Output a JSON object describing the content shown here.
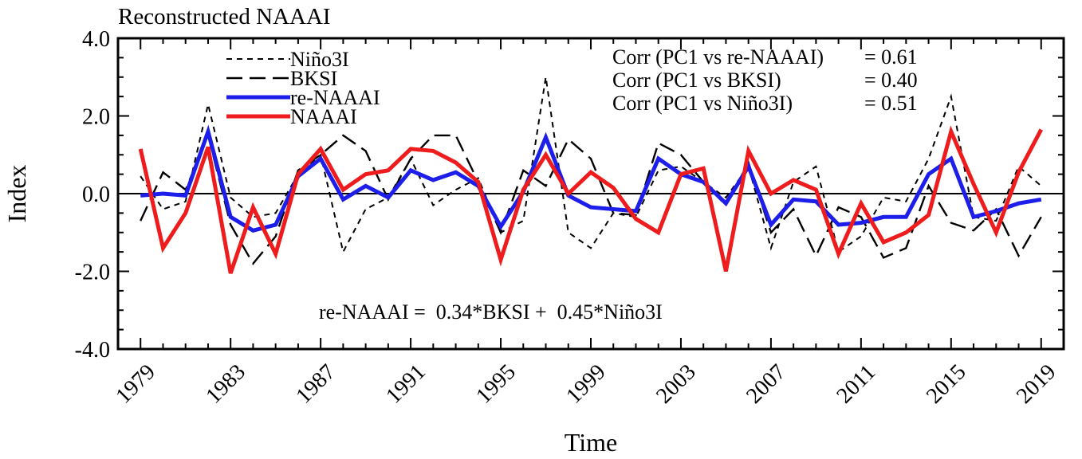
{
  "chart_data": {
    "type": "line",
    "title": "Reconstructed NAAAI",
    "xlabel": "Time",
    "ylabel": "Index",
    "xlim": [
      1978,
      2020
    ],
    "ylim": [
      -4.0,
      4.0
    ],
    "x_ticks": [
      "1979",
      "1983",
      "1987",
      "1991",
      "1995",
      "1999",
      "2003",
      "2007",
      "2011",
      "2015",
      "2019"
    ],
    "y_ticks": [
      "4.0",
      "2.0",
      "0.0",
      "-2.0",
      "-4.0"
    ],
    "grid": false,
    "zero_line": true,
    "legend_position": "top-left",
    "x": [
      1979,
      1980,
      1981,
      1982,
      1983,
      1984,
      1985,
      1986,
      1987,
      1988,
      1989,
      1990,
      1991,
      1992,
      1993,
      1994,
      1995,
      1996,
      1997,
      1998,
      1999,
      2000,
      2001,
      2002,
      2003,
      2004,
      2005,
      2006,
      2007,
      2008,
      2009,
      2010,
      2011,
      2012,
      2013,
      2014,
      2015,
      2016,
      2017,
      2018,
      2019
    ],
    "series": [
      {
        "name": "Niño3I",
        "color": "#000000",
        "style": "short-dash",
        "width": 2,
        "values": [
          0.45,
          -0.4,
          -0.2,
          2.3,
          -0.1,
          -0.6,
          -0.5,
          0.5,
          1.0,
          -1.5,
          -0.4,
          -0.1,
          0.9,
          -0.3,
          0.1,
          0.4,
          -1.0,
          -0.7,
          3.0,
          -1.0,
          -1.4,
          -0.5,
          -0.6,
          0.6,
          0.7,
          0.3,
          -0.1,
          0.7,
          -1.4,
          0.3,
          0.7,
          -1.5,
          -1.1,
          -0.1,
          -0.2,
          0.9,
          2.5,
          -0.6,
          -0.7,
          0.7,
          0.2
        ]
      },
      {
        "name": "BKSI",
        "color": "#000000",
        "style": "long-dash",
        "width": 2.4,
        "values": [
          -0.7,
          0.55,
          0.1,
          1.5,
          -0.8,
          -1.8,
          -1.1,
          0.6,
          1.0,
          1.5,
          1.1,
          -0.15,
          0.9,
          1.5,
          1.5,
          0.3,
          -1.0,
          0.6,
          0.2,
          1.4,
          0.9,
          -0.5,
          -0.55,
          1.3,
          1.0,
          0.3,
          -0.3,
          0.8,
          -1.0,
          -0.4,
          -1.6,
          -0.35,
          -0.6,
          -1.65,
          -1.4,
          0.2,
          -0.75,
          -0.95,
          -0.4,
          -1.6,
          -0.6
        ]
      },
      {
        "name": "re-NAAAI",
        "color": "#1e1eeb",
        "style": "solid",
        "width": 5,
        "values": [
          -0.05,
          0.0,
          -0.05,
          1.6,
          -0.6,
          -0.95,
          -0.8,
          0.45,
          0.9,
          -0.15,
          0.2,
          -0.1,
          0.6,
          0.35,
          0.55,
          0.2,
          -0.85,
          0.05,
          1.45,
          -0.05,
          -0.35,
          -0.4,
          -0.45,
          0.9,
          0.5,
          0.3,
          -0.25,
          0.7,
          -0.8,
          -0.15,
          -0.2,
          -0.8,
          -0.75,
          -0.6,
          -0.6,
          0.5,
          0.9,
          -0.6,
          -0.45,
          -0.25,
          -0.15
        ]
      },
      {
        "name": "NAAAI",
        "color": "#ee1c1c",
        "style": "solid",
        "width": 5,
        "values": [
          1.15,
          -1.4,
          -0.5,
          1.2,
          -2.05,
          -0.35,
          -1.55,
          0.5,
          1.15,
          0.1,
          0.5,
          0.6,
          1.15,
          1.1,
          0.8,
          0.3,
          -1.7,
          0.1,
          1.0,
          0.0,
          0.55,
          0.15,
          -0.65,
          -1.0,
          0.5,
          0.65,
          -2.0,
          1.1,
          0.0,
          0.35,
          0.1,
          -1.55,
          -0.25,
          -1.25,
          -1.0,
          -0.55,
          1.6,
          0.25,
          -1.0,
          0.55,
          1.65
        ]
      }
    ],
    "annotations": {
      "corr": [
        {
          "label": "Corr (PC1 vs re-NAAAI)",
          "value": "= 0.61"
        },
        {
          "label": "Corr (PC1 vs BKSI)",
          "value": "= 0.40"
        },
        {
          "label": "Corr (PC1 vs Niño3I)",
          "value": "= 0.51"
        }
      ],
      "equation": "re-NAAAI =  0.34*BKSI +  0.45*Niño3I"
    }
  }
}
